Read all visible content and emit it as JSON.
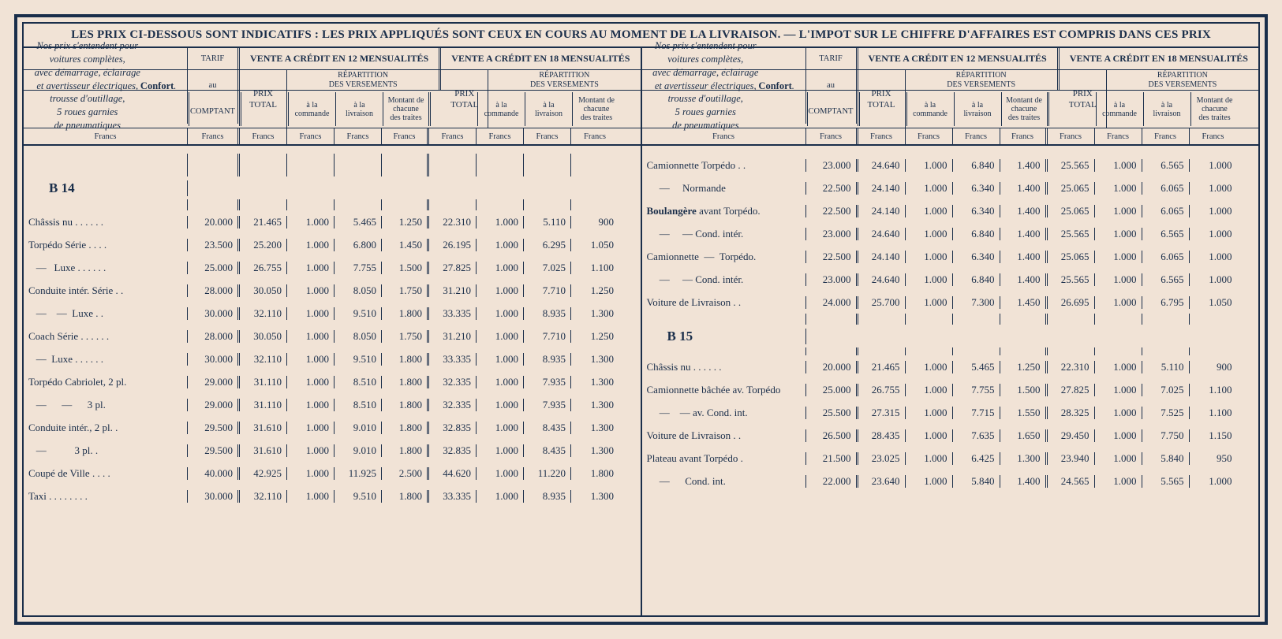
{
  "colors": {
    "ink": "#1a2e4a",
    "paper": "#f1e3d6"
  },
  "banner": "LES PRIX CI-DESSOUS SONT INDICATIFS : LES PRIX APPLIQUÉS SONT CEUX EN COURS AU MOMENT DE LA LIVRAISON. — L'IMPOT SUR LE CHIFFRE D'AFFAIRES EST COMPRIS DANS CES PRIX",
  "desc": "Nos prix s'entendent pour<br>voitures complètes,<br>avec démarrage, éclairage<br>et avertisseur électriques,<br>trousse d'outillage,<br>5 roues garnies<br>de pneumatiques <b>Confort</b>.",
  "col_tarif": "TARIF<br><br>au<br><br>COMPTANT",
  "col_v12": "VENTE A CRÉDIT EN 12 MENSUALITÉS",
  "col_v18": "VENTE A CRÉDIT EN 18 MENSUALITÉS",
  "col_prix_total": "PRIX<br>TOTAL",
  "col_rep": "RÉPARTITION<br>DES VERSEMENTS",
  "col_cmd": "à la<br>commande",
  "col_liv": "à la<br>livraison",
  "col_mnt": "Montant de<br>chacune<br>des traites",
  "col_francs": "Francs",
  "left_group": "B 14",
  "left_rows": [
    {
      "l": "Châssis nu . .   . .   . .",
      "v": [
        "20.000",
        "21.465",
        "1.000",
        "5.465",
        "1.250",
        "22.310",
        "1.000",
        "5.110",
        "900"
      ]
    },
    {
      "l": "Torpédo Série . .   . .",
      "v": [
        "23.500",
        "25.200",
        "1.000",
        "6.800",
        "1.450",
        "26.195",
        "1.000",
        "6.295",
        "1.050"
      ]
    },
    {
      "l": "&nbsp;&nbsp;&nbsp;—&nbsp;&nbsp;&nbsp;Luxe . .   . .   . .",
      "v": [
        "25.000",
        "26.755",
        "1.000",
        "7.755",
        "1.500",
        "27.825",
        "1.000",
        "7.025",
        "1.100"
      ]
    },
    {
      "l": "Conduite intér. Série . .",
      "v": [
        "28.000",
        "30.050",
        "1.000",
        "8.050",
        "1.750",
        "31.210",
        "1.000",
        "7.710",
        "1.250"
      ]
    },
    {
      "l": "&nbsp;&nbsp;&nbsp;—&nbsp;&nbsp;&nbsp;&nbsp;—&nbsp;&nbsp;Luxe . .",
      "v": [
        "30.000",
        "32.110",
        "1.000",
        "9.510",
        "1.800",
        "33.335",
        "1.000",
        "8.935",
        "1.300"
      ]
    },
    {
      "l": "Coach Série . .   . .   . .",
      "v": [
        "28.000",
        "30.050",
        "1.000",
        "8.050",
        "1.750",
        "31.210",
        "1.000",
        "7.710",
        "1.250"
      ]
    },
    {
      "l": "&nbsp;&nbsp;&nbsp;—&nbsp;&nbsp;Luxe . .   . .   . .",
      "v": [
        "30.000",
        "32.110",
        "1.000",
        "9.510",
        "1.800",
        "33.335",
        "1.000",
        "8.935",
        "1.300"
      ]
    },
    {
      "l": "Torpédo Cabriolet, 2 pl.",
      "v": [
        "29.000",
        "31.110",
        "1.000",
        "8.510",
        "1.800",
        "32.335",
        "1.000",
        "7.935",
        "1.300"
      ]
    },
    {
      "l": "&nbsp;&nbsp;&nbsp;—&nbsp;&nbsp;&nbsp;&nbsp;&nbsp;&nbsp;—&nbsp;&nbsp;&nbsp;&nbsp;&nbsp;&nbsp;3 pl.",
      "v": [
        "29.000",
        "31.110",
        "1.000",
        "8.510",
        "1.800",
        "32.335",
        "1.000",
        "7.935",
        "1.300"
      ]
    },
    {
      "l": "Conduite intér., 2 pl. .",
      "v": [
        "29.500",
        "31.610",
        "1.000",
        "9.010",
        "1.800",
        "32.835",
        "1.000",
        "8.435",
        "1.300"
      ]
    },
    {
      "l": "&nbsp;&nbsp;&nbsp;—&nbsp;&nbsp;&nbsp;&nbsp;&nbsp;&nbsp;&nbsp;&nbsp;&nbsp;&nbsp;&nbsp;3 pl. .",
      "v": [
        "29.500",
        "31.610",
        "1.000",
        "9.010",
        "1.800",
        "32.835",
        "1.000",
        "8.435",
        "1.300"
      ]
    },
    {
      "l": "Coupé de Ville . .   . .",
      "v": [
        "40.000",
        "42.925",
        "1.000",
        "11.925",
        "2.500",
        "44.620",
        "1.000",
        "11.220",
        "1.800"
      ]
    },
    {
      "l": "Taxi . .   . .   . .   . .",
      "v": [
        "30.000",
        "32.110",
        "1.000",
        "9.510",
        "1.800",
        "33.335",
        "1.000",
        "8.935",
        "1.300"
      ]
    }
  ],
  "right_rows_a": [
    {
      "l": "Camionnette Torpédo . .",
      "v": [
        "23.000",
        "24.640",
        "1.000",
        "6.840",
        "1.400",
        "25.565",
        "1.000",
        "6.565",
        "1.000"
      ]
    },
    {
      "l": "&nbsp;&nbsp;&nbsp;&nbsp;&nbsp;—&nbsp;&nbsp;&nbsp;&nbsp;&nbsp;Normande",
      "v": [
        "22.500",
        "24.140",
        "1.000",
        "6.340",
        "1.400",
        "25.065",
        "1.000",
        "6.065",
        "1.000"
      ]
    },
    {
      "l": "<b>Boulangère</b> avant Torpédo.",
      "v": [
        "22.500",
        "24.140",
        "1.000",
        "6.340",
        "1.400",
        "25.065",
        "1.000",
        "6.065",
        "1.000"
      ]
    },
    {
      "l": "&nbsp;&nbsp;&nbsp;&nbsp;&nbsp;—&nbsp;&nbsp;&nbsp;&nbsp;&nbsp;— Cond. intér.",
      "v": [
        "23.000",
        "24.640",
        "1.000",
        "6.840",
        "1.400",
        "25.565",
        "1.000",
        "6.565",
        "1.000"
      ]
    },
    {
      "l": "Camionnette&nbsp;&nbsp;—&nbsp;&nbsp;Torpédo.",
      "v": [
        "22.500",
        "24.140",
        "1.000",
        "6.340",
        "1.400",
        "25.065",
        "1.000",
        "6.065",
        "1.000"
      ]
    },
    {
      "l": "&nbsp;&nbsp;&nbsp;&nbsp;&nbsp;—&nbsp;&nbsp;&nbsp;&nbsp;&nbsp;— Cond. intér.",
      "v": [
        "23.000",
        "24.640",
        "1.000",
        "6.840",
        "1.400",
        "25.565",
        "1.000",
        "6.565",
        "1.000"
      ]
    },
    {
      "l": "Voiture de Livraison . .",
      "v": [
        "24.000",
        "25.700",
        "1.000",
        "7.300",
        "1.450",
        "26.695",
        "1.000",
        "6.795",
        "1.050"
      ]
    }
  ],
  "right_group": "B 15",
  "right_rows_b": [
    {
      "l": "Châssis nu . .   . .   . .",
      "v": [
        "20.000",
        "21.465",
        "1.000",
        "5.465",
        "1.250",
        "22.310",
        "1.000",
        "5.110",
        "900"
      ]
    },
    {
      "l": "Camionnette bâchée av. Torpédo",
      "v": [
        "25.000",
        "26.755",
        "1.000",
        "7.755",
        "1.500",
        "27.825",
        "1.000",
        "7.025",
        "1.100"
      ]
    },
    {
      "l": "&nbsp;&nbsp;&nbsp;&nbsp;&nbsp;—&nbsp;&nbsp;&nbsp;&nbsp;— av. Cond. int.",
      "v": [
        "25.500",
        "27.315",
        "1.000",
        "7.715",
        "1.550",
        "28.325",
        "1.000",
        "7.525",
        "1.100"
      ]
    },
    {
      "l": "Voiture de Livraison . .",
      "v": [
        "26.500",
        "28.435",
        "1.000",
        "7.635",
        "1.650",
        "29.450",
        "1.000",
        "7.750",
        "1.150"
      ]
    },
    {
      "l": "Plateau avant Torpédo .",
      "v": [
        "21.500",
        "23.025",
        "1.000",
        "6.425",
        "1.300",
        "23.940",
        "1.000",
        "5.840",
        "950"
      ]
    },
    {
      "l": "&nbsp;&nbsp;&nbsp;&nbsp;&nbsp;—&nbsp;&nbsp;&nbsp;&nbsp;&nbsp;&nbsp;Cond. int.",
      "v": [
        "22.000",
        "23.640",
        "1.000",
        "5.840",
        "1.400",
        "24.565",
        "1.000",
        "5.565",
        "1.000"
      ]
    }
  ]
}
